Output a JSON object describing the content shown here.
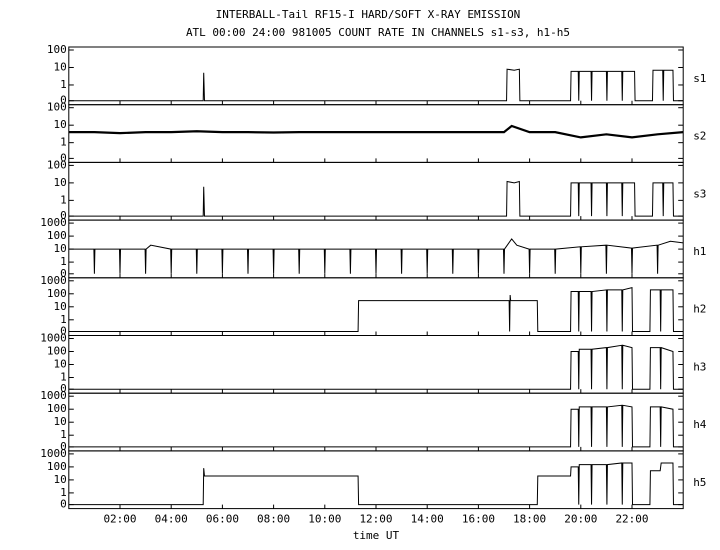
{
  "title": "INTERBALL-Tail RF15-I HARD/SOFT X-RAY EMISSION",
  "subtitle": "ATL 00:00 24:00 981005  COUNT RATE IN CHANNELS s1-s3, h1-h5",
  "x_axis": {
    "label": "time UT",
    "xlim": [
      0,
      24
    ],
    "xticks": [
      {
        "value": 2,
        "label": "02:00"
      },
      {
        "value": 4,
        "label": "04:00"
      },
      {
        "value": 6,
        "label": "06:00"
      },
      {
        "value": 8,
        "label": "08:00"
      },
      {
        "value": 10,
        "label": "10:00"
      },
      {
        "value": 12,
        "label": "12:00"
      },
      {
        "value": 14,
        "label": "14:00"
      },
      {
        "value": 16,
        "label": "16:00"
      },
      {
        "value": 18,
        "label": "18:00"
      },
      {
        "value": 20,
        "label": "20:00"
      },
      {
        "value": 22,
        "label": "22:00"
      }
    ]
  },
  "chart_data": [
    {
      "type": "line",
      "name": "s1",
      "color": "#000000",
      "log": true,
      "ylim": [
        0,
        100
      ],
      "yticks": [
        0,
        1,
        10,
        100
      ],
      "x": [
        0,
        5.25,
        5.27,
        5.3,
        17.1,
        17.12,
        17.4,
        17.6,
        17.62,
        19.6,
        19.62,
        19.9,
        19.92,
        19.94,
        20.4,
        20.42,
        20.44,
        21.0,
        21.02,
        21.04,
        21.6,
        21.62,
        21.64,
        22.1,
        22.12,
        22.8,
        22.82,
        23.2,
        23.22,
        23.24,
        23.6,
        23.62,
        24
      ],
      "values": [
        0,
        0,
        5,
        0,
        0,
        8,
        7,
        8,
        0,
        0,
        6,
        6,
        0,
        6,
        6,
        0,
        6,
        6,
        0,
        6,
        6,
        0,
        6,
        6,
        0,
        0,
        7,
        7,
        0,
        7,
        7,
        0,
        0
      ]
    },
    {
      "type": "line",
      "name": "s2",
      "color": "#000000",
      "log": true,
      "ylim": [
        0,
        100
      ],
      "yticks": [
        0,
        1,
        10,
        100
      ],
      "x": [
        0,
        1,
        2,
        3,
        4,
        5,
        6,
        7,
        8,
        9,
        10,
        11,
        12,
        13,
        14,
        15,
        16,
        17,
        17.3,
        18,
        19,
        20,
        21,
        22,
        23,
        24
      ],
      "values": [
        4,
        4,
        3.5,
        4,
        4,
        4.5,
        4,
        4,
        3.8,
        4,
        4,
        4,
        4,
        4,
        4,
        4,
        4,
        4,
        9,
        4,
        4,
        2,
        3,
        2,
        3,
        4
      ]
    },
    {
      "type": "line",
      "name": "s3",
      "color": "#000000",
      "log": true,
      "ylim": [
        0,
        100
      ],
      "yticks": [
        0,
        1,
        10,
        100
      ],
      "x": [
        0,
        5.25,
        5.27,
        5.3,
        17.1,
        17.12,
        17.4,
        17.6,
        17.62,
        19.6,
        19.62,
        19.9,
        19.92,
        19.94,
        20.4,
        20.42,
        20.44,
        21.0,
        21.02,
        21.04,
        21.6,
        21.62,
        21.64,
        22.1,
        22.12,
        22.8,
        22.82,
        23.2,
        23.22,
        23.24,
        23.6,
        23.62,
        24
      ],
      "values": [
        0,
        0,
        6,
        0,
        0,
        12,
        10,
        12,
        0,
        0,
        10,
        10,
        0,
        10,
        10,
        0,
        10,
        10,
        0,
        10,
        10,
        0,
        10,
        10,
        0,
        0,
        10,
        10,
        0,
        10,
        10,
        0,
        0
      ]
    },
    {
      "type": "line",
      "name": "h1",
      "color": "#000000",
      "log": true,
      "ylim": [
        0,
        1000
      ],
      "yticks": [
        0,
        1,
        10,
        100,
        1000
      ],
      "x": [
        0,
        0.98,
        1,
        1.02,
        1.98,
        2,
        2.02,
        2.98,
        3,
        3.02,
        3.2,
        3.98,
        4,
        4.02,
        4.98,
        5,
        5.02,
        5.98,
        6,
        6.02,
        6.98,
        7,
        7.02,
        7.98,
        8,
        8.02,
        8.98,
        9,
        9.02,
        9.98,
        10,
        10.02,
        10.98,
        11,
        11.02,
        11.98,
        12,
        12.02,
        12.98,
        13,
        13.02,
        13.98,
        14,
        14.02,
        14.98,
        15,
        15.02,
        15.98,
        16,
        16.02,
        16.98,
        17,
        17.02,
        17.3,
        17.5,
        17.98,
        18,
        18.02,
        18.98,
        19,
        19.02,
        19.98,
        20,
        20.02,
        20.98,
        21,
        21.02,
        21.98,
        22,
        22.02,
        22.98,
        23,
        23.02,
        23.5,
        24
      ],
      "values": [
        10,
        10,
        0,
        10,
        10,
        0,
        10,
        10,
        0,
        10,
        20,
        10,
        0,
        10,
        10,
        0,
        10,
        10,
        0,
        10,
        10,
        0,
        10,
        10,
        0,
        10,
        10,
        0,
        10,
        10,
        0,
        10,
        10,
        0,
        10,
        10,
        0,
        10,
        10,
        0,
        10,
        10,
        0,
        10,
        10,
        0,
        10,
        10,
        0,
        10,
        10,
        0,
        10,
        60,
        20,
        10,
        0,
        10,
        10,
        0,
        10,
        15,
        0,
        15,
        20,
        0,
        20,
        12,
        0,
        12,
        20,
        0,
        20,
        40,
        30
      ]
    },
    {
      "type": "line",
      "name": "h2",
      "color": "#000000",
      "log": true,
      "ylim": [
        0,
        1000
      ],
      "yticks": [
        0,
        1,
        10,
        100,
        1000
      ],
      "x": [
        0,
        11.3,
        11.32,
        17.2,
        17.22,
        17.24,
        17.26,
        18.3,
        18.32,
        19.6,
        19.62,
        19.9,
        19.92,
        19.94,
        20.4,
        20.42,
        20.44,
        21.0,
        21.02,
        21.04,
        21.6,
        21.62,
        21.64,
        22.0,
        22.02,
        22.7,
        22.72,
        23.1,
        23.12,
        23.14,
        23.6,
        23.62,
        24
      ],
      "values": [
        0,
        0,
        30,
        30,
        0,
        80,
        30,
        30,
        0,
        0,
        150,
        150,
        0,
        150,
        150,
        0,
        150,
        200,
        0,
        200,
        200,
        0,
        200,
        300,
        0,
        0,
        200,
        200,
        0,
        200,
        200,
        0,
        0
      ]
    },
    {
      "type": "line",
      "name": "h3",
      "color": "#000000",
      "log": true,
      "ylim": [
        0,
        1000
      ],
      "yticks": [
        0,
        1,
        10,
        100,
        1000
      ],
      "x": [
        0,
        19.6,
        19.62,
        19.9,
        19.92,
        19.94,
        20.4,
        20.42,
        20.44,
        21.0,
        21.02,
        21.04,
        21.6,
        21.62,
        21.64,
        22.0,
        22.02,
        22.7,
        22.72,
        23.1,
        23.12,
        23.14,
        23.6,
        23.62,
        24
      ],
      "values": [
        0,
        0,
        100,
        100,
        0,
        150,
        150,
        0,
        150,
        200,
        0,
        200,
        300,
        0,
        300,
        200,
        0,
        0,
        200,
        200,
        0,
        200,
        100,
        0,
        0
      ]
    },
    {
      "type": "line",
      "name": "h4",
      "color": "#000000",
      "log": true,
      "ylim": [
        0,
        1000
      ],
      "yticks": [
        0,
        1,
        10,
        100,
        1000
      ],
      "x": [
        0,
        19.6,
        19.62,
        19.9,
        19.92,
        19.94,
        20.4,
        20.42,
        20.44,
        21.0,
        21.02,
        21.04,
        21.6,
        21.62,
        21.64,
        22.0,
        22.02,
        22.7,
        22.72,
        23.1,
        23.12,
        23.14,
        23.6,
        23.62,
        24
      ],
      "values": [
        0,
        0,
        100,
        100,
        0,
        150,
        150,
        0,
        150,
        150,
        0,
        150,
        200,
        0,
        200,
        150,
        0,
        0,
        150,
        150,
        0,
        150,
        100,
        0,
        0
      ]
    },
    {
      "type": "line",
      "name": "h5",
      "color": "#000000",
      "log": true,
      "ylim": [
        0,
        1000
      ],
      "yticks": [
        0,
        1,
        10,
        100,
        1000
      ],
      "x": [
        0,
        5.25,
        5.27,
        5.3,
        11.3,
        11.32,
        18.3,
        18.32,
        19.6,
        19.62,
        19.9,
        19.92,
        19.94,
        20.4,
        20.42,
        20.44,
        21.0,
        21.02,
        21.04,
        21.6,
        21.62,
        21.64,
        22.0,
        22.02,
        22.7,
        22.72,
        23.1,
        23.12,
        23.14,
        23.6,
        23.62,
        24
      ],
      "values": [
        0,
        0,
        80,
        20,
        20,
        0,
        0,
        20,
        20,
        100,
        100,
        0,
        150,
        150,
        0,
        150,
        150,
        0,
        150,
        200,
        0,
        200,
        200,
        0,
        0,
        50,
        50,
        100,
        200,
        200,
        0,
        0
      ]
    }
  ]
}
